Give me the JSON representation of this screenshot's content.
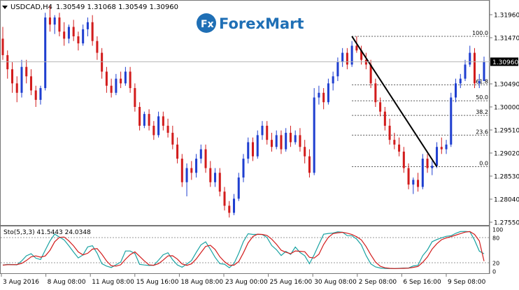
{
  "chart_header": {
    "symbol": "USDCAD,H4",
    "ohlc": "1.30549 1.31068 1.30549 1.30960"
  },
  "brand": {
    "name": "ForexMart"
  },
  "price_scale": {
    "ticks": [
      "1.31960",
      "1.31470",
      "1.30490",
      "1.30000",
      "1.29510",
      "1.29020",
      "1.28530",
      "1.28040",
      "1.27550"
    ],
    "current_price": "1.30960"
  },
  "fibonacci": {
    "levels": [
      {
        "label": "100.0",
        "price": 1.315
      },
      {
        "label": "61.8",
        "price": 1.3047
      },
      {
        "label": "50.0",
        "price": 1.3013
      },
      {
        "label": "38.2",
        "price": 1.2982
      },
      {
        "label": "23.6",
        "price": 1.294
      },
      {
        "label": "0.0",
        "price": 1.2873
      }
    ]
  },
  "stochastic": {
    "label": "Sto(5,3,3) 41.5443 24.0348",
    "ticks": [
      "100",
      "80",
      "20",
      "0"
    ]
  },
  "time_axis": {
    "labels": [
      "3 Aug 2016",
      "8 Aug 08:00",
      "11 Aug 08:00",
      "15 Aug 16:00",
      "18 Aug 08:00",
      "23 Aug 00:00",
      "25 Aug 16:00",
      "30 Aug 08:00",
      "2 Sep 08:00",
      "6 Sep 16:00",
      "9 Sep 08:00"
    ]
  },
  "colors": {
    "bull": "#1f3fd0",
    "bear": "#d21c1c",
    "main_line": "#1aa3a3",
    "signal_line": "#d21c1c",
    "brand_blue": "#1f6fb5",
    "grid_dash": "#555555"
  },
  "chart_data": {
    "type": "candlestick",
    "symbol": "USDCAD",
    "timeframe": "H4",
    "ylim": [
      1.2755,
      1.322
    ],
    "candles": [
      {
        "o": 1.3145,
        "h": 1.317,
        "l": 1.31,
        "c": 1.311
      },
      {
        "o": 1.311,
        "h": 1.312,
        "l": 1.306,
        "c": 1.308
      },
      {
        "o": 1.308,
        "h": 1.3095,
        "l": 1.303,
        "c": 1.305
      },
      {
        "o": 1.305,
        "h": 1.3065,
        "l": 1.301,
        "c": 1.303
      },
      {
        "o": 1.303,
        "h": 1.31,
        "l": 1.302,
        "c": 1.3085
      },
      {
        "o": 1.3085,
        "h": 1.31,
        "l": 1.305,
        "c": 1.3065
      },
      {
        "o": 1.3065,
        "h": 1.308,
        "l": 1.3025,
        "c": 1.3035
      },
      {
        "o": 1.3035,
        "h": 1.3045,
        "l": 1.3,
        "c": 1.3015
      },
      {
        "o": 1.3015,
        "h": 1.3045,
        "l": 1.3005,
        "c": 1.304
      },
      {
        "o": 1.304,
        "h": 1.32,
        "l": 1.3035,
        "c": 1.319
      },
      {
        "o": 1.319,
        "h": 1.3215,
        "l": 1.316,
        "c": 1.3175
      },
      {
        "o": 1.3175,
        "h": 1.3195,
        "l": 1.3155,
        "c": 1.319
      },
      {
        "o": 1.319,
        "h": 1.32,
        "l": 1.315,
        "c": 1.316
      },
      {
        "o": 1.316,
        "h": 1.318,
        "l": 1.313,
        "c": 1.3145
      },
      {
        "o": 1.3145,
        "h": 1.3175,
        "l": 1.3135,
        "c": 1.317
      },
      {
        "o": 1.317,
        "h": 1.3185,
        "l": 1.314,
        "c": 1.315
      },
      {
        "o": 1.315,
        "h": 1.316,
        "l": 1.312,
        "c": 1.3135
      },
      {
        "o": 1.3135,
        "h": 1.3175,
        "l": 1.313,
        "c": 1.3165
      },
      {
        "o": 1.3165,
        "h": 1.319,
        "l": 1.315,
        "c": 1.318
      },
      {
        "o": 1.318,
        "h": 1.3195,
        "l": 1.313,
        "c": 1.314
      },
      {
        "o": 1.314,
        "h": 1.315,
        "l": 1.31,
        "c": 1.3115
      },
      {
        "o": 1.3115,
        "h": 1.3125,
        "l": 1.306,
        "c": 1.3075
      },
      {
        "o": 1.3075,
        "h": 1.3085,
        "l": 1.303,
        "c": 1.3045
      },
      {
        "o": 1.3045,
        "h": 1.306,
        "l": 1.302,
        "c": 1.303
      },
      {
        "o": 1.303,
        "h": 1.307,
        "l": 1.3025,
        "c": 1.306
      },
      {
        "o": 1.306,
        "h": 1.3075,
        "l": 1.304,
        "c": 1.305
      },
      {
        "o": 1.305,
        "h": 1.3085,
        "l": 1.3045,
        "c": 1.3075
      },
      {
        "o": 1.3075,
        "h": 1.3085,
        "l": 1.303,
        "c": 1.304
      },
      {
        "o": 1.304,
        "h": 1.305,
        "l": 1.299,
        "c": 1.3
      },
      {
        "o": 1.3,
        "h": 1.301,
        "l": 1.295,
        "c": 1.296
      },
      {
        "o": 1.296,
        "h": 1.299,
        "l": 1.2955,
        "c": 1.2985
      },
      {
        "o": 1.2985,
        "h": 1.2995,
        "l": 1.295,
        "c": 1.296
      },
      {
        "o": 1.296,
        "h": 1.297,
        "l": 1.293,
        "c": 1.294
      },
      {
        "o": 1.294,
        "h": 1.299,
        "l": 1.2935,
        "c": 1.298
      },
      {
        "o": 1.298,
        "h": 1.299,
        "l": 1.295,
        "c": 1.296
      },
      {
        "o": 1.296,
        "h": 1.2975,
        "l": 1.2935,
        "c": 1.2945
      },
      {
        "o": 1.2945,
        "h": 1.296,
        "l": 1.291,
        "c": 1.292
      },
      {
        "o": 1.292,
        "h": 1.2935,
        "l": 1.288,
        "c": 1.289
      },
      {
        "o": 1.289,
        "h": 1.29,
        "l": 1.283,
        "c": 1.284
      },
      {
        "o": 1.284,
        "h": 1.288,
        "l": 1.281,
        "c": 1.287
      },
      {
        "o": 1.287,
        "h": 1.2885,
        "l": 1.2845,
        "c": 1.286
      },
      {
        "o": 1.286,
        "h": 1.29,
        "l": 1.285,
        "c": 1.289
      },
      {
        "o": 1.289,
        "h": 1.292,
        "l": 1.288,
        "c": 1.291
      },
      {
        "o": 1.291,
        "h": 1.292,
        "l": 1.286,
        "c": 1.287
      },
      {
        "o": 1.287,
        "h": 1.2885,
        "l": 1.283,
        "c": 1.284
      },
      {
        "o": 1.284,
        "h": 1.287,
        "l": 1.283,
        "c": 1.286
      },
      {
        "o": 1.286,
        "h": 1.287,
        "l": 1.281,
        "c": 1.282
      },
      {
        "o": 1.282,
        "h": 1.283,
        "l": 1.278,
        "c": 1.279
      },
      {
        "o": 1.279,
        "h": 1.28,
        "l": 1.2765,
        "c": 1.2775
      },
      {
        "o": 1.2775,
        "h": 1.2815,
        "l": 1.277,
        "c": 1.2805
      },
      {
        "o": 1.2805,
        "h": 1.286,
        "l": 1.28,
        "c": 1.285
      },
      {
        "o": 1.285,
        "h": 1.29,
        "l": 1.284,
        "c": 1.289
      },
      {
        "o": 1.289,
        "h": 1.2935,
        "l": 1.288,
        "c": 1.2925
      },
      {
        "o": 1.2925,
        "h": 1.2935,
        "l": 1.2885,
        "c": 1.2895
      },
      {
        "o": 1.2895,
        "h": 1.295,
        "l": 1.289,
        "c": 1.294
      },
      {
        "o": 1.294,
        "h": 1.297,
        "l": 1.293,
        "c": 1.296
      },
      {
        "o": 1.296,
        "h": 1.297,
        "l": 1.292,
        "c": 1.293
      },
      {
        "o": 1.293,
        "h": 1.2945,
        "l": 1.2905,
        "c": 1.2915
      },
      {
        "o": 1.2915,
        "h": 1.295,
        "l": 1.291,
        "c": 1.294
      },
      {
        "o": 1.294,
        "h": 1.295,
        "l": 1.29,
        "c": 1.291
      },
      {
        "o": 1.291,
        "h": 1.2955,
        "l": 1.2905,
        "c": 1.2945
      },
      {
        "o": 1.2945,
        "h": 1.296,
        "l": 1.2915,
        "c": 1.2925
      },
      {
        "o": 1.2925,
        "h": 1.295,
        "l": 1.292,
        "c": 1.294
      },
      {
        "o": 1.294,
        "h": 1.2955,
        "l": 1.2905,
        "c": 1.2915
      },
      {
        "o": 1.2915,
        "h": 1.293,
        "l": 1.288,
        "c": 1.2895
      },
      {
        "o": 1.2895,
        "h": 1.291,
        "l": 1.285,
        "c": 1.286
      },
      {
        "o": 1.286,
        "h": 1.304,
        "l": 1.2855,
        "c": 1.302
      },
      {
        "o": 1.302,
        "h": 1.3045,
        "l": 1.3005,
        "c": 1.303
      },
      {
        "o": 1.303,
        "h": 1.304,
        "l": 1.2995,
        "c": 1.301
      },
      {
        "o": 1.301,
        "h": 1.306,
        "l": 1.3005,
        "c": 1.305
      },
      {
        "o": 1.305,
        "h": 1.3075,
        "l": 1.3035,
        "c": 1.3065
      },
      {
        "o": 1.3065,
        "h": 1.3105,
        "l": 1.3055,
        "c": 1.3095
      },
      {
        "o": 1.3095,
        "h": 1.3125,
        "l": 1.3085,
        "c": 1.3115
      },
      {
        "o": 1.3115,
        "h": 1.3125,
        "l": 1.308,
        "c": 1.309
      },
      {
        "o": 1.309,
        "h": 1.314,
        "l": 1.3085,
        "c": 1.313
      },
      {
        "o": 1.313,
        "h": 1.315,
        "l": 1.3115,
        "c": 1.312
      },
      {
        "o": 1.312,
        "h": 1.313,
        "l": 1.309,
        "c": 1.31
      },
      {
        "o": 1.31,
        "h": 1.3115,
        "l": 1.308,
        "c": 1.309
      },
      {
        "o": 1.309,
        "h": 1.31,
        "l": 1.304,
        "c": 1.305
      },
      {
        "o": 1.305,
        "h": 1.306,
        "l": 1.3,
        "c": 1.301
      },
      {
        "o": 1.301,
        "h": 1.302,
        "l": 1.298,
        "c": 1.299
      },
      {
        "o": 1.299,
        "h": 1.3,
        "l": 1.295,
        "c": 1.296
      },
      {
        "o": 1.296,
        "h": 1.2975,
        "l": 1.292,
        "c": 1.293
      },
      {
        "o": 1.293,
        "h": 1.2945,
        "l": 1.291,
        "c": 1.292
      },
      {
        "o": 1.292,
        "h": 1.2935,
        "l": 1.2895,
        "c": 1.2905
      },
      {
        "o": 1.2905,
        "h": 1.2915,
        "l": 1.286,
        "c": 1.287
      },
      {
        "o": 1.287,
        "h": 1.288,
        "l": 1.2825,
        "c": 1.2835
      },
      {
        "o": 1.2835,
        "h": 1.285,
        "l": 1.2815,
        "c": 1.2845
      },
      {
        "o": 1.2845,
        "h": 1.286,
        "l": 1.282,
        "c": 1.283
      },
      {
        "o": 1.283,
        "h": 1.29,
        "l": 1.2825,
        "c": 1.289
      },
      {
        "o": 1.289,
        "h": 1.29,
        "l": 1.286,
        "c": 1.287
      },
      {
        "o": 1.287,
        "h": 1.2885,
        "l": 1.2855,
        "c": 1.2875
      },
      {
        "o": 1.2875,
        "h": 1.2925,
        "l": 1.287,
        "c": 1.2915
      },
      {
        "o": 1.2915,
        "h": 1.2935,
        "l": 1.29,
        "c": 1.291
      },
      {
        "o": 1.291,
        "h": 1.293,
        "l": 1.29,
        "c": 1.292
      },
      {
        "o": 1.292,
        "h": 1.303,
        "l": 1.2915,
        "c": 1.302
      },
      {
        "o": 1.302,
        "h": 1.306,
        "l": 1.301,
        "c": 1.305
      },
      {
        "o": 1.305,
        "h": 1.307,
        "l": 1.304,
        "c": 1.306
      },
      {
        "o": 1.306,
        "h": 1.31,
        "l": 1.3055,
        "c": 1.309
      },
      {
        "o": 1.309,
        "h": 1.313,
        "l": 1.3085,
        "c": 1.3115
      },
      {
        "o": 1.3115,
        "h": 1.3125,
        "l": 1.304,
        "c": 1.305
      },
      {
        "o": 1.305,
        "h": 1.307,
        "l": 1.304,
        "c": 1.3055
      },
      {
        "o": 1.3055,
        "h": 1.3107,
        "l": 1.3055,
        "c": 1.3096
      }
    ],
    "trendline": {
      "from_index": 74,
      "from_price": 1.315,
      "to_index": 92,
      "to_price": 1.2873
    },
    "stochastic": {
      "label": "Sto(5,3,3)",
      "main": 41.5443,
      "signal": 24.0348,
      "levels": [
        20,
        80
      ],
      "ylim": [
        0,
        100
      ]
    }
  }
}
